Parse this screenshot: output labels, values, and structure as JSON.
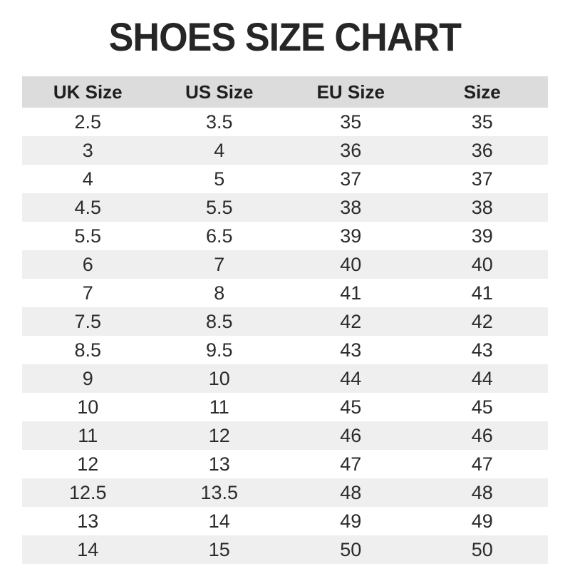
{
  "page": {
    "title": "SHOES SIZE CHART"
  },
  "chart_data": {
    "type": "table",
    "title": "SHOES SIZE CHART",
    "headers": [
      "UK Size",
      "US Size",
      "EU Size",
      "Size"
    ],
    "rows": [
      [
        "2.5",
        "3.5",
        "35",
        "35"
      ],
      [
        "3",
        "4",
        "36",
        "36"
      ],
      [
        "4",
        "5",
        "37",
        "37"
      ],
      [
        "4.5",
        "5.5",
        "38",
        "38"
      ],
      [
        "5.5",
        "6.5",
        "39",
        "39"
      ],
      [
        "6",
        "7",
        "40",
        "40"
      ],
      [
        "7",
        "8",
        "41",
        "41"
      ],
      [
        "7.5",
        "8.5",
        "42",
        "42"
      ],
      [
        "8.5",
        "9.5",
        "43",
        "43"
      ],
      [
        "9",
        "10",
        "44",
        "44"
      ],
      [
        "10",
        "11",
        "45",
        "45"
      ],
      [
        "11",
        "12",
        "46",
        "46"
      ],
      [
        "12",
        "13",
        "47",
        "47"
      ],
      [
        "12.5",
        "13.5",
        "48",
        "48"
      ],
      [
        "13",
        "14",
        "49",
        "49"
      ],
      [
        "14",
        "15",
        "50",
        "50"
      ]
    ],
    "layout": {
      "row_striping": "even rows shaded",
      "first_data_row_background": "white",
      "columns_aligned": "center"
    }
  },
  "colors": {
    "header_bg": "#dcdcdc",
    "row_alt_bg": "#efefef",
    "text": "#2b2b2b",
    "title_color": "#262626",
    "page_bg": "#ffffff"
  }
}
